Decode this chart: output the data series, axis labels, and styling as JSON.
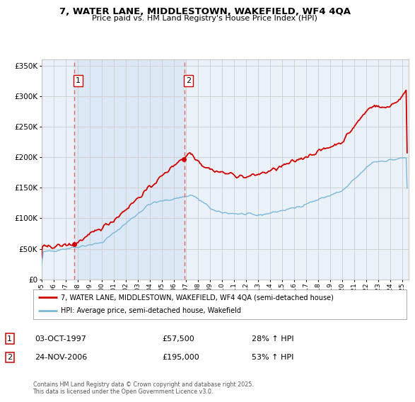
{
  "title": "7, WATER LANE, MIDDLESTOWN, WAKEFIELD, WF4 4QA",
  "subtitle": "Price paid vs. HM Land Registry's House Price Index (HPI)",
  "legend_line1": "7, WATER LANE, MIDDLESTOWN, WAKEFIELD, WF4 4QA (semi-detached house)",
  "legend_line2": "HPI: Average price, semi-detached house, Wakefield",
  "transaction1_label": "1",
  "transaction1_date": "03-OCT-1997",
  "transaction1_price": "£57,500",
  "transaction1_hpi": "28% ↑ HPI",
  "transaction2_label": "2",
  "transaction2_date": "24-NOV-2006",
  "transaction2_price": "£195,000",
  "transaction2_hpi": "53% ↑ HPI",
  "footer": "Contains HM Land Registry data © Crown copyright and database right 2025.\nThis data is licensed under the Open Government Licence v3.0.",
  "hpi_color": "#7ab8d9",
  "price_color": "#cc0000",
  "vline_color": "#dd6666",
  "bg_shade_color": "#dce8f5",
  "marker_color": "#cc0000",
  "grid_color": "#cccccc",
  "background_color": "#ffffff",
  "plot_bg_color": "#eaf1f8",
  "year_start": 1995,
  "year_end": 2025,
  "ymax": 350000,
  "transaction1_year": 1997.75,
  "transaction2_year": 2006.9
}
